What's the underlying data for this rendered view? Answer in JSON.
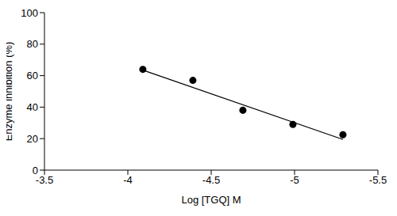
{
  "chart_data": {
    "type": "scatter",
    "x_label": "Log [TGQ] M",
    "y_label": "Enzyme inhibition (%)",
    "xlim": [
      -3.5,
      -5.5
    ],
    "xticks": [
      -3.5,
      -4,
      -4.5,
      -5,
      -5.5
    ],
    "ylim": [
      0,
      100
    ],
    "yticks": [
      0,
      20,
      40,
      60,
      80,
      100
    ],
    "grid": false,
    "series": [
      {
        "type": "scatter",
        "marker": "circle",
        "color": "#000000",
        "x": [
          -4.09,
          -4.39,
          -4.69,
          -4.99,
          -5.29
        ],
        "values": [
          64,
          57,
          38,
          29,
          22.5
        ]
      },
      {
        "type": "line",
        "line_style": "solid",
        "color": "#000000",
        "x": [
          -4.09,
          -5.29
        ],
        "values": [
          63.5,
          19.5
        ]
      }
    ]
  }
}
